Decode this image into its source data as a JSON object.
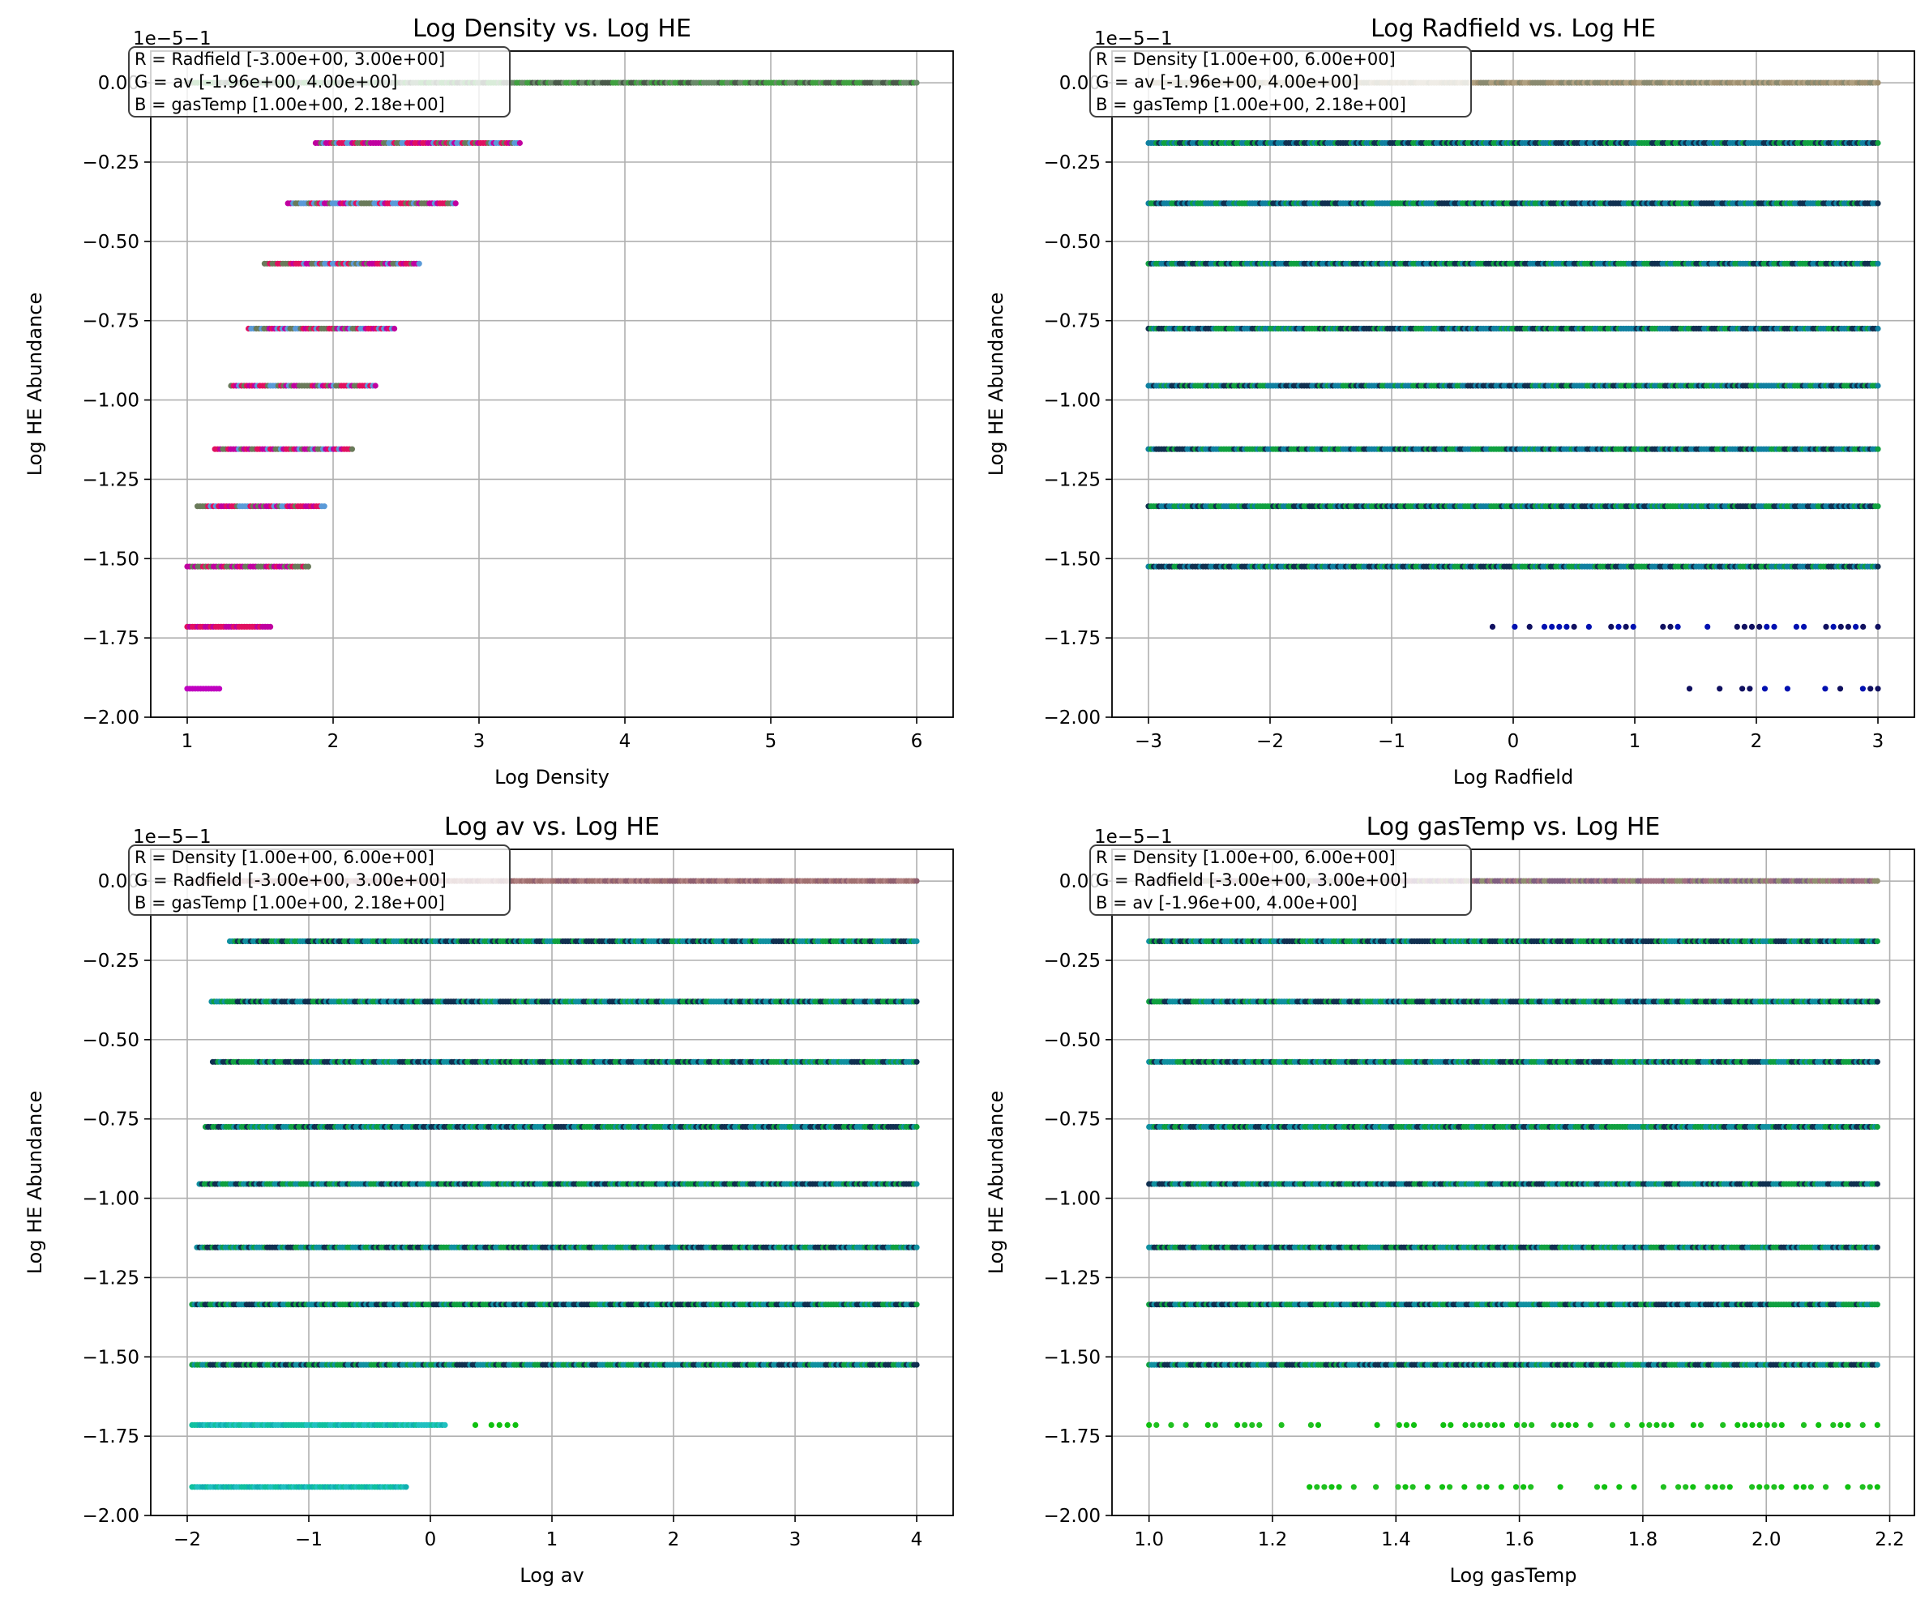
{
  "chart_data": [
    {
      "type": "scatter",
      "title": "Log Density vs. Log HE",
      "xlabel": "Log Density",
      "ylabel": "Log HE Abundance",
      "y_offset_label": "1e−5−1",
      "xlim": [
        0.75,
        6.25
      ],
      "ylim": [
        -2.0,
        0.1
      ],
      "xticks": [
        1,
        2,
        3,
        4,
        5,
        6
      ],
      "xtick_labels": [
        "1",
        "2",
        "3",
        "4",
        "5",
        "6"
      ],
      "yticks": [
        0,
        -0.25,
        -0.5,
        -0.75,
        -1.0,
        -1.25,
        -1.5,
        -1.75,
        -2.0
      ],
      "ytick_labels": [
        "0.00",
        "−0.25",
        "−0.50",
        "−0.75",
        "−1.00",
        "−1.25",
        "−1.50",
        "−1.75",
        "−2.00"
      ],
      "grid": true,
      "legend_position": "top-left",
      "legend": [
        "R = Radfield [-3.00e+00, 3.00e+00]",
        "G = av [-1.96e+00, 4.00e+00]",
        "B = gasTemp [1.00e+00, 2.18e+00]"
      ],
      "series": [
        {
          "y": 0.0,
          "x": [
            1.0,
            6.0
          ],
          "colors": [
            "#4a5a4a",
            "#6a8a6a",
            "#40a040"
          ]
        },
        {
          "y": -0.19,
          "x": [
            1.88,
            3.28
          ],
          "colors": [
            "#5a9ad8",
            "#6a7a5a",
            "#c000a0",
            "#e01060"
          ]
        },
        {
          "y": -0.38,
          "x": [
            1.69,
            2.84
          ],
          "colors": [
            "#5a9ad8",
            "#6a7a5a",
            "#c000a0",
            "#e01060"
          ]
        },
        {
          "y": -0.57,
          "x": [
            1.53,
            2.59
          ],
          "colors": [
            "#5a9ad8",
            "#6a7a5a",
            "#c000a0",
            "#e01060"
          ]
        },
        {
          "y": -0.775,
          "x": [
            1.42,
            2.42
          ],
          "colors": [
            "#5a9ad8",
            "#6a7a5a",
            "#c000a0",
            "#e01060"
          ]
        },
        {
          "y": -0.955,
          "x": [
            1.3,
            2.29
          ],
          "colors": [
            "#5a9ad8",
            "#6a7a5a",
            "#c000a0",
            "#e01060"
          ]
        },
        {
          "y": -1.155,
          "x": [
            1.19,
            2.13
          ],
          "colors": [
            "#5a9ad8",
            "#6a7a5a",
            "#c000a0",
            "#e01060"
          ]
        },
        {
          "y": -1.335,
          "x": [
            1.07,
            1.94
          ],
          "colors": [
            "#5a9ad8",
            "#6a7a5a",
            "#c000a0",
            "#e01060"
          ]
        },
        {
          "y": -1.525,
          "x": [
            1.0,
            1.83
          ],
          "colors": [
            "#6a7a5a",
            "#c000a0",
            "#e01060"
          ]
        },
        {
          "y": -1.715,
          "x": [
            1.0,
            1.57
          ],
          "colors": [
            "#c000a0",
            "#e01060"
          ]
        },
        {
          "y": -1.91,
          "x": [
            1.0,
            1.22
          ],
          "colors": [
            "#c000c0"
          ]
        }
      ]
    },
    {
      "type": "scatter",
      "title": "Log Radfield vs. Log HE",
      "xlabel": "Log Radfield",
      "ylabel": "Log HE Abundance",
      "y_offset_label": "1e−5−1",
      "xlim": [
        -3.3,
        3.3
      ],
      "ylim": [
        -2.0,
        0.1
      ],
      "xticks": [
        -3,
        -2,
        -1,
        0,
        1,
        2,
        3
      ],
      "xtick_labels": [
        "−3",
        "−2",
        "−1",
        "0",
        "1",
        "2",
        "3"
      ],
      "yticks": [
        0,
        -0.25,
        -0.5,
        -0.75,
        -1.0,
        -1.25,
        -1.5,
        -1.75,
        -2.0
      ],
      "ytick_labels": [
        "0.00",
        "−0.25",
        "−0.50",
        "−0.75",
        "−1.00",
        "−1.25",
        "−1.50",
        "−1.75",
        "−2.00"
      ],
      "grid": true,
      "legend_position": "top-left",
      "legend": [
        "R = Density [1.00e+00, 6.00e+00]",
        "G = av [-1.96e+00, 4.00e+00]",
        "B = gasTemp [1.00e+00, 2.18e+00]"
      ],
      "series": [
        {
          "y": 0.0,
          "x": [
            -3.0,
            3.0
          ],
          "colors": [
            "#a09070",
            "#8a8a70",
            "#b0a080"
          ]
        },
        {
          "y": -0.19,
          "x": [
            -3.0,
            3.0
          ],
          "colors": [
            "#103050",
            "#10a040",
            "#1080a0"
          ]
        },
        {
          "y": -0.38,
          "x": [
            -3.0,
            3.0
          ],
          "colors": [
            "#103050",
            "#10a040",
            "#1080a0"
          ]
        },
        {
          "y": -0.57,
          "x": [
            -3.0,
            3.0
          ],
          "colors": [
            "#103050",
            "#10a040",
            "#1080a0"
          ]
        },
        {
          "y": -0.775,
          "x": [
            -3.0,
            3.0
          ],
          "colors": [
            "#103050",
            "#10a040",
            "#1080a0"
          ]
        },
        {
          "y": -0.955,
          "x": [
            -3.0,
            3.0
          ],
          "colors": [
            "#103050",
            "#10a040",
            "#1080a0"
          ]
        },
        {
          "y": -1.155,
          "x": [
            -3.0,
            3.0
          ],
          "colors": [
            "#103050",
            "#10a040",
            "#1080a0"
          ]
        },
        {
          "y": -1.335,
          "x": [
            -3.0,
            3.0
          ],
          "colors": [
            "#103050",
            "#10a040",
            "#1080a0"
          ]
        },
        {
          "y": -1.525,
          "x": [
            -3.0,
            3.0
          ],
          "colors": [
            "#103050",
            "#10a040",
            "#1080a0"
          ]
        },
        {
          "y": -1.715,
          "x": [
            -0.17,
            3.0
          ],
          "colors": [
            "#0010b0",
            "#101060"
          ],
          "sparse": true
        },
        {
          "y": -1.91,
          "x": [
            1.45,
            3.0
          ],
          "colors": [
            "#0010b0",
            "#101060"
          ],
          "sparse": true
        }
      ]
    },
    {
      "type": "scatter",
      "title": "Log av vs. Log HE",
      "xlabel": "Log av",
      "ylabel": "Log HE Abundance",
      "y_offset_label": "1e−5−1",
      "xlim": [
        -2.3,
        4.3
      ],
      "ylim": [
        -2.0,
        0.1
      ],
      "xticks": [
        -2,
        -1,
        0,
        1,
        2,
        3,
        4
      ],
      "xtick_labels": [
        "−2",
        "−1",
        "0",
        "1",
        "2",
        "3",
        "4"
      ],
      "yticks": [
        0,
        -0.25,
        -0.5,
        -0.75,
        -1.0,
        -1.25,
        -1.5,
        -1.75,
        -2.0
      ],
      "ytick_labels": [
        "0.00",
        "−0.25",
        "−0.50",
        "−0.75",
        "−1.00",
        "−1.25",
        "−1.50",
        "−1.75",
        "−2.00"
      ],
      "grid": true,
      "legend_position": "top-left",
      "legend": [
        "R = Density [1.00e+00, 6.00e+00]",
        "G = Radfield [-3.00e+00, 3.00e+00]",
        "B = gasTemp [1.00e+00, 2.18e+00]"
      ],
      "series": [
        {
          "y": 0.0,
          "x": [
            -1.96,
            4.0
          ],
          "colors": [
            "#a07070",
            "#906070",
            "#b08080"
          ]
        },
        {
          "y": -0.19,
          "x": [
            -1.65,
            4.0
          ],
          "colors": [
            "#103050",
            "#10a040",
            "#1090a0"
          ]
        },
        {
          "y": -0.38,
          "x": [
            -1.8,
            4.0
          ],
          "colors": [
            "#103050",
            "#10a040",
            "#1090a0"
          ]
        },
        {
          "y": -0.57,
          "x": [
            -1.79,
            4.0
          ],
          "colors": [
            "#103050",
            "#10a040",
            "#1090a0"
          ]
        },
        {
          "y": -0.775,
          "x": [
            -1.85,
            4.0
          ],
          "colors": [
            "#103050",
            "#10a040",
            "#1090a0"
          ]
        },
        {
          "y": -0.955,
          "x": [
            -1.9,
            4.0
          ],
          "colors": [
            "#103050",
            "#10a040",
            "#1090a0"
          ]
        },
        {
          "y": -1.155,
          "x": [
            -1.92,
            4.0
          ],
          "colors": [
            "#103050",
            "#10a040",
            "#1090a0"
          ]
        },
        {
          "y": -1.335,
          "x": [
            -1.96,
            4.0
          ],
          "colors": [
            "#103050",
            "#10a040",
            "#1090a0"
          ]
        },
        {
          "y": -1.525,
          "x": [
            -1.96,
            4.0
          ],
          "colors": [
            "#103050",
            "#10a040",
            "#1090a0"
          ]
        },
        {
          "y": -1.715,
          "x": [
            -1.96,
            0.12
          ],
          "colors": [
            "#10c0a0",
            "#10b0b0",
            "#20c0c0"
          ]
        },
        {
          "y": -1.715,
          "x": [
            0.37,
            0.7
          ],
          "colors": [
            "#10c010"
          ],
          "sparse": true
        },
        {
          "y": -1.91,
          "x": [
            -1.96,
            -0.2
          ],
          "colors": [
            "#10c0a0",
            "#10b0b0",
            "#20c0c0"
          ]
        }
      ]
    },
    {
      "type": "scatter",
      "title": "Log gasTemp vs. Log HE",
      "xlabel": "Log gasTemp",
      "ylabel": "Log HE Abundance",
      "y_offset_label": "1e−5−1",
      "xlim": [
        0.94,
        2.24
      ],
      "ylim": [
        -2.0,
        0.1
      ],
      "xticks": [
        1.0,
        1.2,
        1.4,
        1.6,
        1.8,
        2.0,
        2.2
      ],
      "xtick_labels": [
        "1.0",
        "1.2",
        "1.4",
        "1.6",
        "1.8",
        "2.0",
        "2.2"
      ],
      "yticks": [
        0,
        -0.25,
        -0.5,
        -0.75,
        -1.0,
        -1.25,
        -1.5,
        -1.75,
        -2.0
      ],
      "ytick_labels": [
        "0.00",
        "−0.25",
        "−0.50",
        "−0.75",
        "−1.00",
        "−1.25",
        "−1.50",
        "−1.75",
        "−2.00"
      ],
      "grid": true,
      "legend_position": "top-left",
      "legend": [
        "R = Density [1.00e+00, 6.00e+00]",
        "G = Radfield [-3.00e+00, 3.00e+00]",
        "B = av [-1.96e+00, 4.00e+00]"
      ],
      "series": [
        {
          "y": 0.0,
          "x": [
            1.0,
            2.18
          ],
          "colors": [
            "#806080",
            "#a07080",
            "#909070"
          ]
        },
        {
          "y": -0.19,
          "x": [
            1.0,
            2.18
          ],
          "colors": [
            "#103050",
            "#10a040",
            "#1090a0"
          ]
        },
        {
          "y": -0.38,
          "x": [
            1.0,
            2.18
          ],
          "colors": [
            "#103050",
            "#10a040",
            "#1090a0"
          ]
        },
        {
          "y": -0.57,
          "x": [
            1.0,
            2.18
          ],
          "colors": [
            "#103050",
            "#10a040",
            "#1090a0"
          ]
        },
        {
          "y": -0.775,
          "x": [
            1.0,
            2.18
          ],
          "colors": [
            "#103050",
            "#10a040",
            "#1090a0"
          ]
        },
        {
          "y": -0.955,
          "x": [
            1.0,
            2.18
          ],
          "colors": [
            "#103050",
            "#10a040",
            "#1090a0"
          ]
        },
        {
          "y": -1.155,
          "x": [
            1.0,
            2.18
          ],
          "colors": [
            "#103050",
            "#10a040",
            "#1090a0"
          ]
        },
        {
          "y": -1.335,
          "x": [
            1.0,
            2.18
          ],
          "colors": [
            "#103050",
            "#10a040",
            "#1090a0"
          ]
        },
        {
          "y": -1.525,
          "x": [
            1.0,
            2.18
          ],
          "colors": [
            "#103050",
            "#10a040",
            "#1090a0"
          ]
        },
        {
          "y": -1.715,
          "x": [
            1.0,
            2.18
          ],
          "colors": [
            "#10c010",
            "#20c020"
          ],
          "sparse": true
        },
        {
          "y": -1.91,
          "x": [
            1.26,
            2.18
          ],
          "colors": [
            "#10c010",
            "#20c020"
          ],
          "sparse": true
        }
      ]
    }
  ]
}
